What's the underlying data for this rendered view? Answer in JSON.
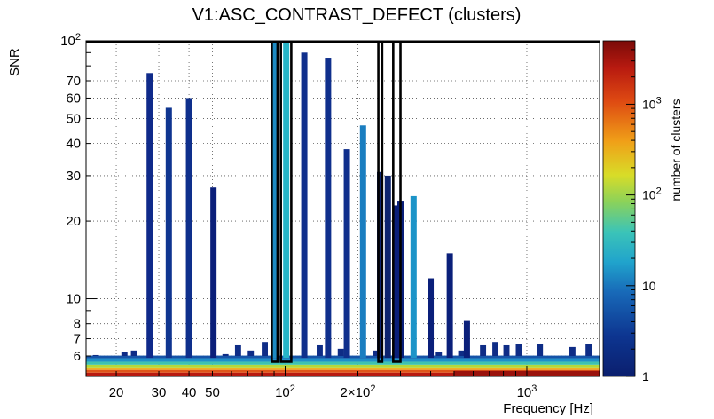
{
  "chart_data": {
    "type": "heatmap",
    "title": "V1:ASC_CONTRAST_DEFECT (clusters)",
    "xlabel": "Frequency [Hz]",
    "ylabel": "SNR",
    "colorbar_label": "number of clusters",
    "x_scale": "log",
    "y_scale": "log",
    "xlim": [
      15,
      2000
    ],
    "ylim": [
      5,
      100
    ],
    "zlim": [
      1,
      5000
    ],
    "grid": true,
    "x_ticks": [
      {
        "value": 20,
        "label": "20"
      },
      {
        "value": 30,
        "label": "30"
      },
      {
        "value": 40,
        "label": "40"
      },
      {
        "value": 50,
        "label": "50"
      },
      {
        "value": 100,
        "label": "10",
        "exponent": "2"
      },
      {
        "value": 200,
        "label": "2×10",
        "exponent": "2"
      },
      {
        "value": 1000,
        "label": "10",
        "exponent": "3"
      }
    ],
    "y_ticks": [
      {
        "value": 6,
        "label": "6"
      },
      {
        "value": 7,
        "label": "7"
      },
      {
        "value": 8,
        "label": "8"
      },
      {
        "value": 10,
        "label": "10"
      },
      {
        "value": 20,
        "label": "20"
      },
      {
        "value": 30,
        "label": "30"
      },
      {
        "value": 40,
        "label": "40"
      },
      {
        "value": 50,
        "label": "50"
      },
      {
        "value": 60,
        "label": "60"
      },
      {
        "value": 70,
        "label": "70"
      },
      {
        "value": 100,
        "label": "10",
        "exponent": "2"
      }
    ],
    "colorbar_ticks": [
      {
        "value": 1,
        "label": "1"
      },
      {
        "value": 10,
        "label": "10"
      },
      {
        "value": 100,
        "label": "10",
        "exponent": "2"
      },
      {
        "value": 1000,
        "label": "10",
        "exponent": "3"
      }
    ],
    "spikes": [
      {
        "f": 27.5,
        "snr_max": 75,
        "color": "#0f2a8a"
      },
      {
        "f": 33.0,
        "snr_max": 55,
        "color": "#0f3590"
      },
      {
        "f": 40.0,
        "snr_max": 60,
        "color": "#0e2f8c"
      },
      {
        "f": 50.5,
        "snr_max": 27,
        "color": "#0a1f7a"
      },
      {
        "f": 90.5,
        "snr_max": 100,
        "color": "#1d8bc4"
      },
      {
        "f": 101.0,
        "snr_max": 100,
        "color": "#26b4c6"
      },
      {
        "f": 120.0,
        "snr_max": 90,
        "color": "#0f2f8c"
      },
      {
        "f": 150.5,
        "snr_max": 86,
        "color": "#0f2f8c"
      },
      {
        "f": 180.0,
        "snr_max": 38,
        "color": "#0f2f8c"
      },
      {
        "f": 210.0,
        "snr_max": 47,
        "color": "#1a7ec0"
      },
      {
        "f": 247.0,
        "snr_max": 31,
        "color": "#0c236f"
      },
      {
        "f": 266.0,
        "snr_max": 30,
        "color": "#0c236f"
      },
      {
        "f": 290.0,
        "snr_max": 23,
        "color": "#0a1f7a"
      },
      {
        "f": 300.0,
        "snr_max": 24,
        "color": "#0a1f7a"
      },
      {
        "f": 340.0,
        "snr_max": 25,
        "color": "#1c94c8"
      },
      {
        "f": 400.0,
        "snr_max": 12,
        "color": "#0a1f7a"
      },
      {
        "f": 480.0,
        "snr_max": 15,
        "color": "#0a1f7a"
      },
      {
        "f": 565.0,
        "snr_max": 8.2,
        "color": "#0a1f7a"
      }
    ],
    "highlight_boxes": [
      {
        "f_min": 88,
        "f_max": 93
      },
      {
        "f_min": 96,
        "f_max": 106
      },
      {
        "f_min": 243,
        "f_max": 252
      },
      {
        "f_min": 280,
        "f_max": 300
      }
    ]
  }
}
